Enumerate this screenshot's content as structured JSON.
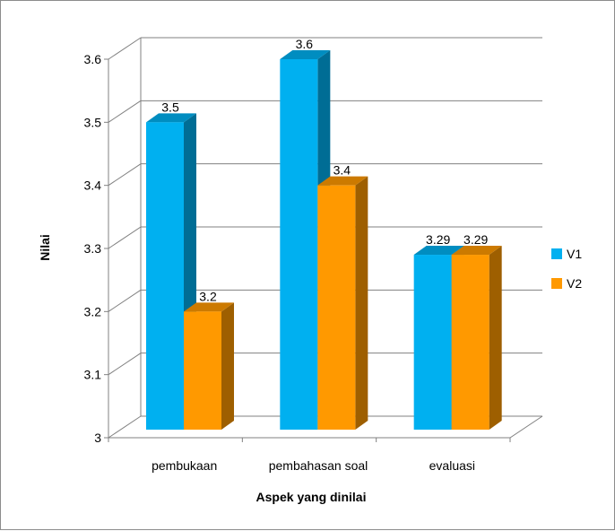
{
  "chart_data": {
    "type": "bar",
    "style": "3d-clustered-column",
    "categories": [
      "pembukaan",
      "pembahasan soal",
      "evaluasi"
    ],
    "series": [
      {
        "name": "V1",
        "values": [
          3.5,
          3.6,
          3.29
        ],
        "color": "#00b0f0",
        "labels": [
          "3.5",
          "3.6",
          "3.29"
        ]
      },
      {
        "name": "V2",
        "values": [
          3.2,
          3.4,
          3.29
        ],
        "color": "#ff9900",
        "labels": [
          "3.2",
          "3.4",
          "3.29"
        ]
      }
    ],
    "xlabel": "Aspek yang dinilai",
    "ylabel": "Nilai",
    "ylim": [
      3,
      3.6
    ],
    "yticks": [
      "3",
      "3.1",
      "3.2",
      "3.3",
      "3.4",
      "3.5",
      "3.6"
    ],
    "grid": true,
    "legend_position": "right"
  }
}
